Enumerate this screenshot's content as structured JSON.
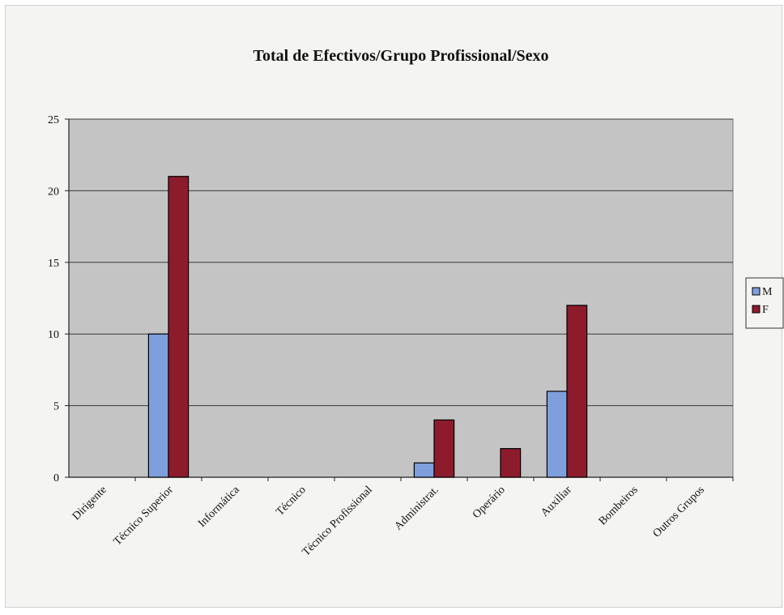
{
  "chart_data": {
    "type": "bar",
    "title": "Total de Efectivos/Grupo Profissional/Sexo",
    "xlabel": "",
    "ylabel": "",
    "categories": [
      "Dirigente",
      "Técnico Superior",
      "Informática",
      "Técnico",
      "Técnico Profissional",
      "Administrat.",
      "Operário",
      "Auxiliar",
      "Bombeiros",
      "Outros Grupos"
    ],
    "series": [
      {
        "name": "M",
        "color": "#7f9fdc",
        "values": [
          0,
          10,
          0,
          0,
          0,
          1,
          0,
          6,
          0,
          0
        ]
      },
      {
        "name": "F",
        "color": "#8c1c2c",
        "values": [
          0,
          21,
          0,
          0,
          0,
          4,
          2,
          12,
          0,
          0
        ]
      }
    ],
    "ylim": [
      0,
      25
    ],
    "yticks": [
      0,
      5,
      10,
      15,
      20,
      25
    ],
    "grid": true,
    "legend_position": "right",
    "plot_background": "#c4c4c4"
  }
}
